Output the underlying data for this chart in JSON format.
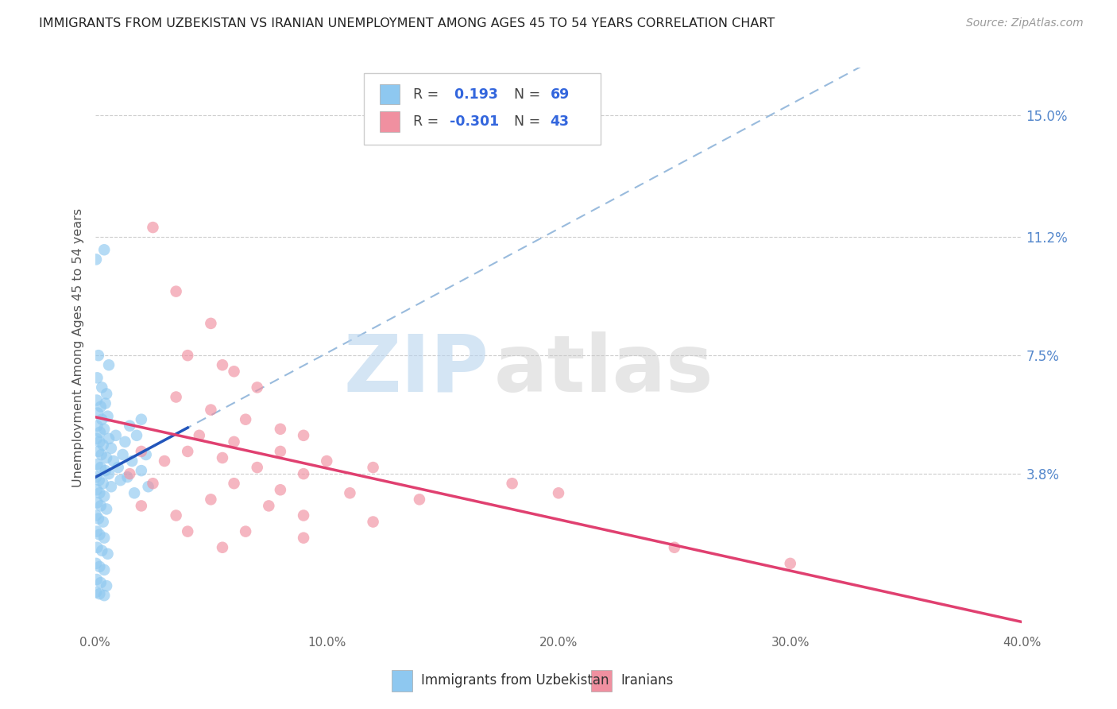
{
  "title": "IMMIGRANTS FROM UZBEKISTAN VS IRANIAN UNEMPLOYMENT AMONG AGES 45 TO 54 YEARS CORRELATION CHART",
  "source": "Source: ZipAtlas.com",
  "ylabel": "Unemployment Among Ages 45 to 54 years",
  "xlim": [
    0.0,
    40.0
  ],
  "ylim": [
    -1.0,
    16.5
  ],
  "xticks": [
    0.0,
    10.0,
    20.0,
    30.0,
    40.0
  ],
  "xtick_labels": [
    "0.0%",
    "10.0%",
    "20.0%",
    "30.0%",
    "40.0%"
  ],
  "right_yticks": [
    3.8,
    7.5,
    11.2,
    15.0
  ],
  "right_ytick_labels": [
    "3.8%",
    "7.5%",
    "11.2%",
    "15.0%"
  ],
  "grid_color": "#cccccc",
  "background_color": "#ffffff",
  "watermark_zip": "ZIP",
  "watermark_atlas": "atlas",
  "uzbek_color": "#8EC8F0",
  "iranian_color": "#F090A0",
  "uzbek_trend_color": "#2255BB",
  "iranian_trend_color": "#E04070",
  "dashed_line_color": "#99BBDD",
  "uzbek_points": [
    [
      0.05,
      10.5
    ],
    [
      0.4,
      10.8
    ],
    [
      0.15,
      7.5
    ],
    [
      0.6,
      7.2
    ],
    [
      0.1,
      6.8
    ],
    [
      0.3,
      6.5
    ],
    [
      0.5,
      6.3
    ],
    [
      0.08,
      6.1
    ],
    [
      0.25,
      5.9
    ],
    [
      0.45,
      6.0
    ],
    [
      0.12,
      5.7
    ],
    [
      0.3,
      5.5
    ],
    [
      0.55,
      5.6
    ],
    [
      0.1,
      5.3
    ],
    [
      0.22,
      5.1
    ],
    [
      0.4,
      5.2
    ],
    [
      0.08,
      4.9
    ],
    [
      0.2,
      4.8
    ],
    [
      0.35,
      4.7
    ],
    [
      0.6,
      4.9
    ],
    [
      0.9,
      5.0
    ],
    [
      0.15,
      4.5
    ],
    [
      0.28,
      4.4
    ],
    [
      0.5,
      4.3
    ],
    [
      0.7,
      4.6
    ],
    [
      0.1,
      4.1
    ],
    [
      0.25,
      4.0
    ],
    [
      0.45,
      3.9
    ],
    [
      0.8,
      4.2
    ],
    [
      1.2,
      4.4
    ],
    [
      0.05,
      3.7
    ],
    [
      0.18,
      3.6
    ],
    [
      0.35,
      3.5
    ],
    [
      0.6,
      3.8
    ],
    [
      1.0,
      4.0
    ],
    [
      0.08,
      3.3
    ],
    [
      0.2,
      3.2
    ],
    [
      0.4,
      3.1
    ],
    [
      0.7,
      3.4
    ],
    [
      1.1,
      3.6
    ],
    [
      0.1,
      2.9
    ],
    [
      0.25,
      2.8
    ],
    [
      0.5,
      2.7
    ],
    [
      0.05,
      2.5
    ],
    [
      0.15,
      2.4
    ],
    [
      0.35,
      2.3
    ],
    [
      0.08,
      2.0
    ],
    [
      0.2,
      1.9
    ],
    [
      0.4,
      1.8
    ],
    [
      0.1,
      1.5
    ],
    [
      0.3,
      1.4
    ],
    [
      0.55,
      1.3
    ],
    [
      0.05,
      1.0
    ],
    [
      0.2,
      0.9
    ],
    [
      0.4,
      0.8
    ],
    [
      0.08,
      0.5
    ],
    [
      0.25,
      0.4
    ],
    [
      0.5,
      0.3
    ],
    [
      0.05,
      0.1
    ],
    [
      0.2,
      0.05
    ],
    [
      0.4,
      0.0
    ],
    [
      1.5,
      5.3
    ],
    [
      2.0,
      5.5
    ],
    [
      1.3,
      4.8
    ],
    [
      1.8,
      5.0
    ],
    [
      1.6,
      4.2
    ],
    [
      2.2,
      4.4
    ],
    [
      1.4,
      3.7
    ],
    [
      2.0,
      3.9
    ],
    [
      1.7,
      3.2
    ],
    [
      2.3,
      3.4
    ]
  ],
  "iranian_points": [
    [
      2.5,
      11.5
    ],
    [
      3.5,
      9.5
    ],
    [
      5.0,
      8.5
    ],
    [
      4.0,
      7.5
    ],
    [
      5.5,
      7.2
    ],
    [
      6.0,
      7.0
    ],
    [
      7.0,
      6.5
    ],
    [
      3.5,
      6.2
    ],
    [
      5.0,
      5.8
    ],
    [
      6.5,
      5.5
    ],
    [
      8.0,
      5.2
    ],
    [
      9.0,
      5.0
    ],
    [
      4.5,
      5.0
    ],
    [
      6.0,
      4.8
    ],
    [
      8.0,
      4.5
    ],
    [
      4.0,
      4.5
    ],
    [
      5.5,
      4.3
    ],
    [
      10.0,
      4.2
    ],
    [
      12.0,
      4.0
    ],
    [
      7.0,
      4.0
    ],
    [
      9.0,
      3.8
    ],
    [
      6.0,
      3.5
    ],
    [
      8.0,
      3.3
    ],
    [
      11.0,
      3.2
    ],
    [
      14.0,
      3.0
    ],
    [
      18.0,
      3.5
    ],
    [
      5.0,
      3.0
    ],
    [
      7.5,
      2.8
    ],
    [
      9.0,
      2.5
    ],
    [
      12.0,
      2.3
    ],
    [
      6.5,
      2.0
    ],
    [
      9.0,
      1.8
    ],
    [
      2.0,
      4.5
    ],
    [
      3.0,
      4.2
    ],
    [
      1.5,
      3.8
    ],
    [
      2.5,
      3.5
    ],
    [
      2.0,
      2.8
    ],
    [
      3.5,
      2.5
    ],
    [
      4.0,
      2.0
    ],
    [
      5.5,
      1.5
    ],
    [
      20.0,
      3.2
    ],
    [
      25.0,
      1.5
    ],
    [
      30.0,
      1.0
    ]
  ]
}
